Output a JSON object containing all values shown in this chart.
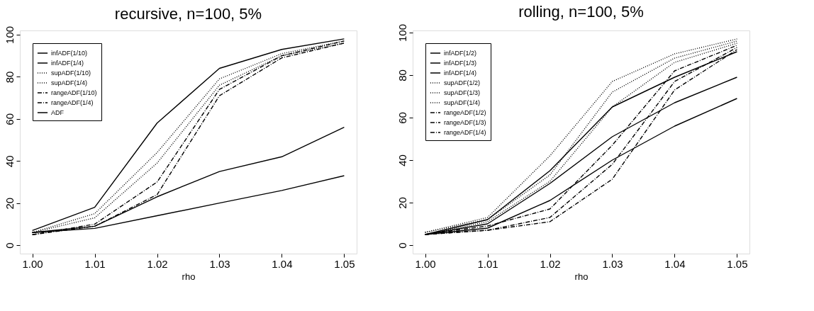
{
  "chart_data": [
    {
      "type": "line",
      "title": "recursive, n=100, 5%",
      "xlabel": "rho",
      "x": [
        1.0,
        1.01,
        1.02,
        1.03,
        1.04,
        1.05
      ],
      "xlim": [
        0.998,
        1.052
      ],
      "xticks": [
        {
          "value": 1.0,
          "label": "1.00"
        },
        {
          "value": 1.01,
          "label": "1.01"
        },
        {
          "value": 1.02,
          "label": "1.02"
        },
        {
          "value": 1.03,
          "label": "1.03"
        },
        {
          "value": 1.04,
          "label": "1.04"
        },
        {
          "value": 1.05,
          "label": "1.05"
        }
      ],
      "ylim": [
        -4,
        102
      ],
      "yticks": [
        0,
        20,
        40,
        60,
        80,
        100
      ],
      "grid": false,
      "legend": "top left",
      "series": [
        {
          "name": "infADF(1/10)",
          "color": "#000000",
          "line_style": "solid",
          "values": [
            6,
            8,
            14,
            20,
            26,
            33
          ]
        },
        {
          "name": "infADF(1/4)",
          "color": "#000000",
          "line_style": "solid",
          "values": [
            6,
            9,
            23,
            35,
            42,
            56
          ]
        },
        {
          "name": "supADF(1/10)",
          "color": "#000000",
          "line_style": "dotted",
          "values": [
            6,
            13,
            39,
            76,
            90,
            96
          ]
        },
        {
          "name": "supADF(1/4)",
          "color": "#000000",
          "line_style": "dotted",
          "values": [
            6,
            15,
            44,
            79,
            91,
            97
          ]
        },
        {
          "name": "rangeADF(1/10)",
          "color": "#000000",
          "line_style": "dashed",
          "values": [
            5,
            9,
            24,
            71,
            89,
            96
          ]
        },
        {
          "name": "rangeADF(1/4)",
          "color": "#000000",
          "line_style": "dashed",
          "values": [
            5,
            10,
            30,
            74,
            90,
            97
          ]
        },
        {
          "name": "ADF",
          "color": "#000000",
          "line_style": "solid",
          "values": [
            7,
            18,
            58,
            84,
            93,
            98
          ]
        }
      ]
    },
    {
      "type": "line",
      "title": "rolling, n=100, 5%",
      "xlabel": "rho",
      "x": [
        1.0,
        1.01,
        1.02,
        1.03,
        1.04,
        1.05
      ],
      "xlim": [
        0.998,
        1.052
      ],
      "xticks": [
        {
          "value": 1.0,
          "label": "1.00"
        },
        {
          "value": 1.01,
          "label": "1.01"
        },
        {
          "value": 1.02,
          "label": "1.02"
        },
        {
          "value": 1.03,
          "label": "1.03"
        },
        {
          "value": 1.04,
          "label": "1.04"
        },
        {
          "value": 1.05,
          "label": "1.05"
        }
      ],
      "ylim": [
        -4,
        101
      ],
      "yticks": [
        0,
        20,
        40,
        60,
        80,
        100
      ],
      "grid": false,
      "legend": "top left",
      "series": [
        {
          "name": "infADF(1/2)",
          "color": "#000000",
          "line_style": "solid",
          "values": [
            5,
            12,
            35,
            65,
            79,
            91
          ]
        },
        {
          "name": "infADF(1/3)",
          "color": "#000000",
          "line_style": "solid",
          "values": [
            5,
            10,
            29,
            51,
            67,
            79
          ]
        },
        {
          "name": "infADF(1/4)",
          "color": "#000000",
          "line_style": "solid",
          "values": [
            5,
            8,
            21,
            40,
            56,
            69
          ]
        },
        {
          "name": "supADF(1/2)",
          "color": "#000000",
          "line_style": "dotted",
          "values": [
            6,
            13,
            42,
            77,
            90,
            97
          ]
        },
        {
          "name": "supADF(1/3)",
          "color": "#000000",
          "line_style": "dotted",
          "values": [
            6,
            12,
            33,
            72,
            88,
            96
          ]
        },
        {
          "name": "supADF(1/4)",
          "color": "#000000",
          "line_style": "dotted",
          "values": [
            5,
            11,
            30,
            65,
            86,
            95
          ]
        },
        {
          "name": "rangeADF(1/2)",
          "color": "#000000",
          "line_style": "dashed",
          "values": [
            5,
            9,
            17,
            47,
            82,
            94
          ]
        },
        {
          "name": "rangeADF(1/3)",
          "color": "#000000",
          "line_style": "dashed",
          "values": [
            5,
            7,
            13,
            38,
            77,
            93
          ]
        },
        {
          "name": "rangeADF(1/4)",
          "color": "#000000",
          "line_style": "dashed",
          "values": [
            5,
            7,
            11,
            31,
            73,
            92
          ]
        }
      ]
    }
  ]
}
